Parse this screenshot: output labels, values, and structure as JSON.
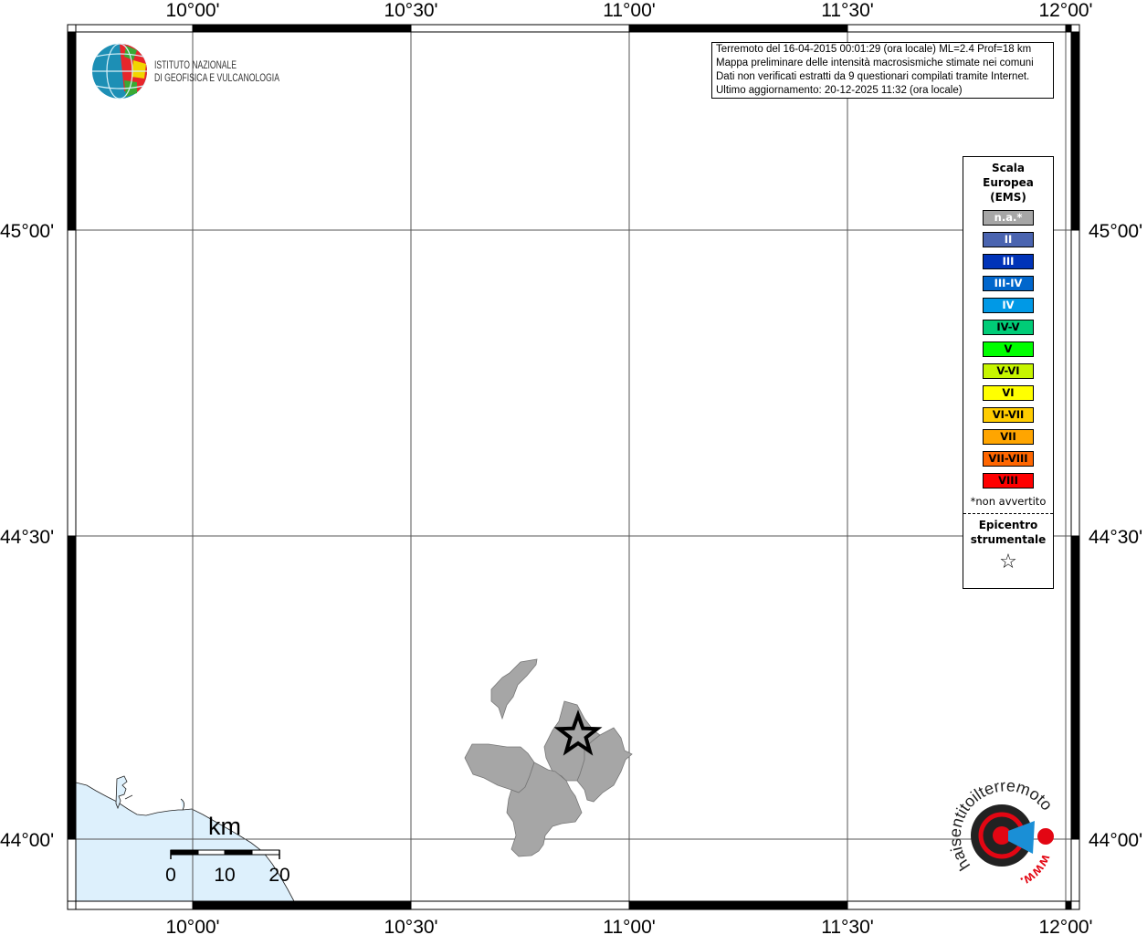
{
  "map": {
    "lon_labels": [
      "10°00'",
      "10°30'",
      "11°00'",
      "11°30'",
      "12°00'"
    ],
    "lat_labels": [
      "45°00'",
      "44°30'",
      "44°00'"
    ],
    "colors": {
      "land_affected": "#a6a6a6",
      "sea": "#ddf0fc",
      "grid": "#555555"
    },
    "scale_bar": {
      "unit": "km",
      "labels": [
        "0",
        "10",
        "20"
      ]
    },
    "epicenter_icon": "star-icon"
  },
  "info": {
    "lines": [
      "Terremoto del 16-04-2015 00:01:29 (ora locale) ML=2.4 Prof=18 km",
      "Mappa preliminare delle intensità macrosismiche stimate nei comuni",
      "Dati non verificati estratti da 9 questionari compilati tramite Internet.",
      "Ultimo aggiornamento: 20-12-2025 11:32 (ora locale)"
    ]
  },
  "legend": {
    "title": [
      "Scala",
      "Europea",
      "(EMS)"
    ],
    "items": [
      {
        "label": "n.a.*",
        "color": "#a6a6a6",
        "text_color": "#ffffff"
      },
      {
        "label": "II",
        "color": "#4a64b0",
        "text_color": "#ffffff"
      },
      {
        "label": "III",
        "color": "#0033b8",
        "text_color": "#ffffff"
      },
      {
        "label": "III-IV",
        "color": "#0066cc",
        "text_color": "#ffffff"
      },
      {
        "label": "IV",
        "color": "#0099e6",
        "text_color": "#ffffff"
      },
      {
        "label": "IV-V",
        "color": "#00cc77",
        "text_color": "#000000"
      },
      {
        "label": "V",
        "color": "#00ff00",
        "text_color": "#000000"
      },
      {
        "label": "V-VI",
        "color": "#c6f500",
        "text_color": "#000000"
      },
      {
        "label": "VI",
        "color": "#ffff00",
        "text_color": "#000000"
      },
      {
        "label": "VI-VII",
        "color": "#ffcc00",
        "text_color": "#000000"
      },
      {
        "label": "VII",
        "color": "#ffa500",
        "text_color": "#000000"
      },
      {
        "label": "VII-VIII",
        "color": "#ff6600",
        "text_color": "#000000"
      },
      {
        "label": "VIII",
        "color": "#ff0000",
        "text_color": "#000000"
      }
    ],
    "note": "*non avvertito",
    "epicenter_label": [
      "Epicentro",
      "strumentale"
    ],
    "epicenter_symbol": "☆"
  },
  "logos": {
    "ingv": [
      "ISTITUTO NAZIONALE",
      "DI GEOFISICA E VULCANOLOGIA"
    ],
    "hsit": {
      "top": "haisentitoilterremoto.it",
      "bottom": "www."
    }
  }
}
